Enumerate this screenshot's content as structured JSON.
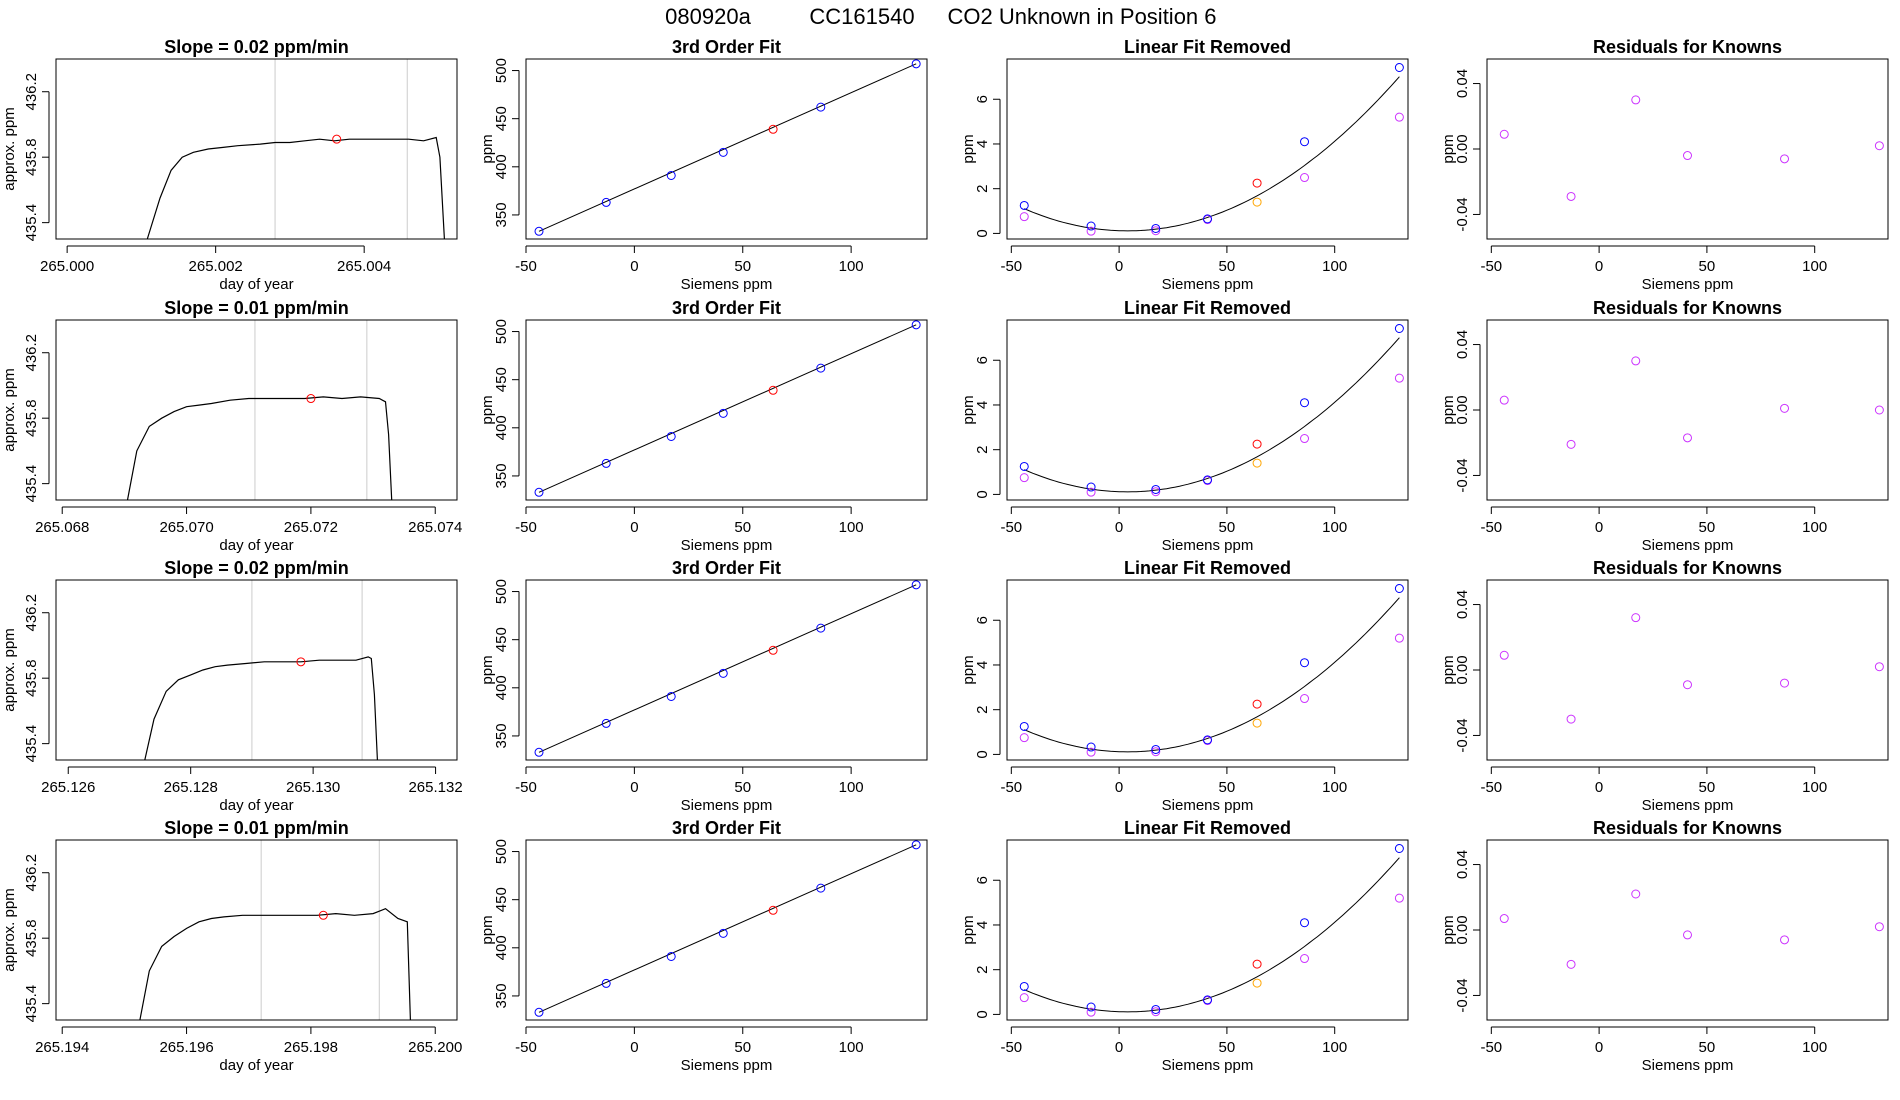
{
  "page": {
    "title_parts": [
      "080920a",
      "CC161540",
      "CO2 Unknown in Position  6"
    ]
  },
  "colors": {
    "axis": "#000000",
    "line": "#000000",
    "vline": "#cccccc",
    "blue": "#0000ff",
    "red": "#ff0000",
    "magenta": "#cc33ff",
    "orange": "#ffa500"
  },
  "chart_data": [
    {
      "type": "line",
      "title": "Slope =  0.02  ppm/min",
      "xlabel": "day of year",
      "ylabel": "approx. ppm",
      "xlim": [
        264.99985,
        265.00525
      ],
      "ylim": [
        435.3,
        436.4
      ],
      "xticks": [
        265.0,
        265.002,
        265.004
      ],
      "xtick_labels": [
        "265.000",
        "265.002",
        "265.004"
      ],
      "yticks": [
        435.4,
        435.8,
        436.2
      ],
      "ytick_labels": [
        "435.4",
        "435.8",
        "436.2"
      ],
      "vlines": [
        265.0028,
        265.00458
      ],
      "marker": {
        "x": 265.00363,
        "y": 435.91
      },
      "trace": {
        "x": [
          265.00108,
          265.00125,
          265.0014,
          265.00155,
          265.0017,
          265.0019,
          265.0021,
          265.0023,
          265.0026,
          265.0028,
          265.003,
          265.0032,
          265.0034,
          265.0036,
          265.0038,
          265.004,
          265.0042,
          265.0044,
          265.0046,
          265.0048,
          265.00497,
          265.00502,
          265.00508
        ],
        "y": [
          435.3,
          435.55,
          435.72,
          435.8,
          435.83,
          435.85,
          435.86,
          435.87,
          435.88,
          435.89,
          435.89,
          435.9,
          435.91,
          435.9,
          435.91,
          435.91,
          435.91,
          435.91,
          435.91,
          435.9,
          435.92,
          435.8,
          435.3
        ]
      }
    },
    {
      "type": "scatter",
      "title": "3rd Order Fit",
      "xlabel": "Siemens ppm",
      "ylabel": "ppm",
      "xlim": [
        -50,
        135
      ],
      "ylim": [
        325,
        512
      ],
      "xticks": [
        -50,
        0,
        50,
        100
      ],
      "yticks": [
        350,
        400,
        450,
        500
      ],
      "points_blue": [
        [
          -44,
          333
        ],
        [
          -13,
          363
        ],
        [
          17,
          391
        ],
        [
          41,
          415
        ],
        [
          86,
          462
        ],
        [
          130,
          507
        ]
      ],
      "points_red": [
        [
          64,
          439
        ]
      ],
      "curve": {
        "from": [
          -44,
          333
        ],
        "to": [
          130,
          507
        ]
      }
    },
    {
      "type": "scatter",
      "title": "Linear Fit Removed",
      "xlabel": "Siemens ppm",
      "ylabel": "ppm",
      "xlim": [
        -52,
        134
      ],
      "ylim": [
        -0.25,
        7.8
      ],
      "xticks": [
        -50,
        0,
        50,
        100
      ],
      "yticks": [
        0,
        2,
        4,
        6
      ],
      "points_blue": [
        [
          -44,
          1.25
        ],
        [
          -13,
          0.33
        ],
        [
          17,
          0.22
        ],
        [
          41,
          0.65
        ],
        [
          86,
          4.1
        ],
        [
          130,
          7.42
        ]
      ],
      "points_red": [
        [
          64,
          2.25
        ]
      ],
      "points_magenta": [
        [
          -44,
          0.75
        ],
        [
          -13,
          0.1
        ],
        [
          17,
          0.12
        ],
        [
          41,
          0.62
        ],
        [
          86,
          2.5
        ],
        [
          130,
          5.2
        ]
      ],
      "points_orange": [
        [
          64,
          1.4
        ]
      ],
      "poly": [
        0.12,
        -0.0033,
        0.000433
      ]
    },
    {
      "type": "scatter",
      "title": "Residuals for Knowns",
      "xlabel": "Siemens ppm",
      "ylabel": "ppm",
      "xlim": [
        -52,
        134
      ],
      "ylim": [
        -0.055,
        0.055
      ],
      "xticks": [
        -50,
        0,
        50,
        100
      ],
      "yticks": [
        -0.04,
        0.0,
        0.04
      ],
      "ytick_labels": [
        "-0.04",
        "0.00",
        "0.04"
      ],
      "points_magenta": [
        [
          -44,
          0.009
        ],
        [
          -13,
          -0.029
        ],
        [
          17,
          0.03
        ],
        [
          41,
          -0.004
        ],
        [
          86,
          -0.006
        ],
        [
          130,
          0.002
        ]
      ]
    },
    {
      "type": "line",
      "title": "Slope =  0.01  ppm/min",
      "xlabel": "day of year",
      "ylabel": "approx. ppm",
      "xlim": [
        265.0679,
        265.07435
      ],
      "ylim": [
        435.3,
        436.4
      ],
      "xticks": [
        265.068,
        265.07,
        265.072,
        265.074
      ],
      "xtick_labels": [
        "265.068",
        "265.070",
        "265.072",
        "265.074"
      ],
      "yticks": [
        435.4,
        435.8,
        436.2
      ],
      "ytick_labels": [
        "435.4",
        "435.8",
        "436.2"
      ],
      "vlines": [
        265.0711,
        265.0729
      ],
      "marker": {
        "x": 265.072,
        "y": 435.92
      },
      "trace": {
        "x": [
          265.06905,
          265.0692,
          265.0694,
          265.0696,
          265.0698,
          265.07,
          265.0702,
          265.0704,
          265.0707,
          265.071,
          265.0713,
          265.0716,
          265.0719,
          265.0722,
          265.0725,
          265.0728,
          265.0731,
          265.0732,
          265.07325,
          265.0733
        ],
        "y": [
          435.3,
          435.6,
          435.75,
          435.8,
          435.84,
          435.87,
          435.88,
          435.89,
          435.91,
          435.92,
          435.92,
          435.92,
          435.92,
          435.93,
          435.92,
          435.93,
          435.92,
          435.9,
          435.7,
          435.3
        ]
      }
    },
    {
      "type": "scatter",
      "title": "3rd Order Fit",
      "xlabel": "Siemens ppm",
      "ylabel": "ppm",
      "xlim": [
        -50,
        135
      ],
      "ylim": [
        325,
        512
      ],
      "xticks": [
        -50,
        0,
        50,
        100
      ],
      "yticks": [
        350,
        400,
        450,
        500
      ],
      "points_blue": [
        [
          -44,
          333
        ],
        [
          -13,
          363
        ],
        [
          17,
          391
        ],
        [
          41,
          415
        ],
        [
          86,
          462
        ],
        [
          130,
          507
        ]
      ],
      "points_red": [
        [
          64,
          439
        ]
      ],
      "curve": {
        "from": [
          -44,
          333
        ],
        "to": [
          130,
          507
        ]
      }
    },
    {
      "type": "scatter",
      "title": "Linear Fit Removed",
      "xlabel": "Siemens ppm",
      "ylabel": "ppm",
      "xlim": [
        -52,
        134
      ],
      "ylim": [
        -0.25,
        7.8
      ],
      "xticks": [
        -50,
        0,
        50,
        100
      ],
      "yticks": [
        0,
        2,
        4,
        6
      ],
      "points_blue": [
        [
          -44,
          1.25
        ],
        [
          -13,
          0.33
        ],
        [
          17,
          0.22
        ],
        [
          41,
          0.65
        ],
        [
          86,
          4.1
        ],
        [
          130,
          7.42
        ]
      ],
      "points_red": [
        [
          64,
          2.25
        ]
      ],
      "points_magenta": [
        [
          -44,
          0.75
        ],
        [
          -13,
          0.1
        ],
        [
          17,
          0.12
        ],
        [
          41,
          0.62
        ],
        [
          86,
          2.5
        ],
        [
          130,
          5.2
        ]
      ],
      "points_orange": [
        [
          64,
          1.4
        ]
      ],
      "poly": [
        0.12,
        -0.0033,
        0.000433
      ]
    },
    {
      "type": "scatter",
      "title": "Residuals for Knowns",
      "xlabel": "Siemens ppm",
      "ylabel": "ppm",
      "xlim": [
        -52,
        134
      ],
      "ylim": [
        -0.055,
        0.055
      ],
      "xticks": [
        -50,
        0,
        50,
        100
      ],
      "yticks": [
        -0.04,
        0.0,
        0.04
      ],
      "ytick_labels": [
        "-0.04",
        "0.00",
        "0.04"
      ],
      "points_magenta": [
        [
          -44,
          0.006
        ],
        [
          -13,
          -0.021
        ],
        [
          17,
          0.03
        ],
        [
          41,
          -0.017
        ],
        [
          86,
          0.001
        ],
        [
          130,
          0.0
        ]
      ]
    },
    {
      "type": "line",
      "title": "Slope =  0.02  ppm/min",
      "xlabel": "day of year",
      "ylabel": "approx. ppm",
      "xlim": [
        265.1258,
        265.13235
      ],
      "ylim": [
        435.3,
        436.4
      ],
      "xticks": [
        265.126,
        265.128,
        265.13,
        265.132
      ],
      "xtick_labels": [
        "265.126",
        "265.128",
        "265.130",
        "265.132"
      ],
      "yticks": [
        435.4,
        435.8,
        436.2
      ],
      "ytick_labels": [
        "435.4",
        "435.8",
        "436.2"
      ],
      "vlines": [
        265.129,
        265.1308
      ],
      "marker": {
        "x": 265.1298,
        "y": 435.9
      },
      "trace": {
        "x": [
          265.12725,
          265.1274,
          265.1276,
          265.1278,
          265.128,
          265.1282,
          265.1284,
          265.1286,
          265.1289,
          265.1292,
          265.1295,
          265.1298,
          265.1301,
          265.1304,
          265.1307,
          265.1309,
          265.13095,
          265.131,
          265.13105
        ],
        "y": [
          435.3,
          435.55,
          435.72,
          435.79,
          435.82,
          435.85,
          435.87,
          435.88,
          435.89,
          435.9,
          435.9,
          435.9,
          435.91,
          435.91,
          435.91,
          435.93,
          435.92,
          435.7,
          435.3
        ]
      }
    },
    {
      "type": "scatter",
      "title": "3rd Order Fit",
      "xlabel": "Siemens ppm",
      "ylabel": "ppm",
      "xlim": [
        -50,
        135
      ],
      "ylim": [
        325,
        512
      ],
      "xticks": [
        -50,
        0,
        50,
        100
      ],
      "yticks": [
        350,
        400,
        450,
        500
      ],
      "points_blue": [
        [
          -44,
          333
        ],
        [
          -13,
          363
        ],
        [
          17,
          391
        ],
        [
          41,
          415
        ],
        [
          86,
          462
        ],
        [
          130,
          507
        ]
      ],
      "points_red": [
        [
          64,
          439
        ]
      ],
      "curve": {
        "from": [
          -44,
          333
        ],
        "to": [
          130,
          507
        ]
      }
    },
    {
      "type": "scatter",
      "title": "Linear Fit Removed",
      "xlabel": "Siemens ppm",
      "ylabel": "ppm",
      "xlim": [
        -52,
        134
      ],
      "ylim": [
        -0.25,
        7.8
      ],
      "xticks": [
        -50,
        0,
        50,
        100
      ],
      "yticks": [
        0,
        2,
        4,
        6
      ],
      "points_blue": [
        [
          -44,
          1.25
        ],
        [
          -13,
          0.33
        ],
        [
          17,
          0.22
        ],
        [
          41,
          0.65
        ],
        [
          86,
          4.1
        ],
        [
          130,
          7.42
        ]
      ],
      "points_red": [
        [
          64,
          2.25
        ]
      ],
      "points_magenta": [
        [
          -44,
          0.75
        ],
        [
          -13,
          0.1
        ],
        [
          17,
          0.12
        ],
        [
          41,
          0.62
        ],
        [
          86,
          2.5
        ],
        [
          130,
          5.2
        ]
      ],
      "points_orange": [
        [
          64,
          1.4
        ]
      ],
      "poly": [
        0.12,
        -0.0033,
        0.000433
      ]
    },
    {
      "type": "scatter",
      "title": "Residuals for Knowns",
      "xlabel": "Siemens ppm",
      "ylabel": "ppm",
      "xlim": [
        -52,
        134
      ],
      "ylim": [
        -0.055,
        0.055
      ],
      "xticks": [
        -50,
        0,
        50,
        100
      ],
      "yticks": [
        -0.04,
        0.0,
        0.04
      ],
      "ytick_labels": [
        "-0.04",
        "0.00",
        "0.04"
      ],
      "points_magenta": [
        [
          -44,
          0.009
        ],
        [
          -13,
          -0.03
        ],
        [
          17,
          0.032
        ],
        [
          41,
          -0.009
        ],
        [
          86,
          -0.008
        ],
        [
          130,
          0.002
        ]
      ]
    },
    {
      "type": "line",
      "title": "Slope =  0.01  ppm/min",
      "xlabel": "day of year",
      "ylabel": "approx. ppm",
      "xlim": [
        265.1939,
        265.20035
      ],
      "ylim": [
        435.3,
        436.4
      ],
      "xticks": [
        265.194,
        265.196,
        265.198,
        265.2
      ],
      "xtick_labels": [
        "265.194",
        "265.196",
        "265.198",
        "265.200"
      ],
      "yticks": [
        435.4,
        435.8,
        436.2
      ],
      "ytick_labels": [
        "435.4",
        "435.8",
        "436.2"
      ],
      "vlines": [
        265.1972,
        265.1991
      ],
      "marker": {
        "x": 265.1982,
        "y": 435.94
      },
      "trace": {
        "x": [
          265.19525,
          265.1954,
          265.1956,
          265.1958,
          265.196,
          265.1962,
          265.1964,
          265.1966,
          265.1969,
          265.1972,
          265.1975,
          265.1978,
          265.1981,
          265.1984,
          265.1987,
          265.199,
          265.1992,
          265.1994,
          265.19955,
          265.1996
        ],
        "y": [
          435.3,
          435.6,
          435.75,
          435.81,
          435.86,
          435.9,
          435.92,
          435.93,
          435.94,
          435.94,
          435.94,
          435.94,
          435.94,
          435.95,
          435.94,
          435.95,
          435.98,
          435.92,
          435.9,
          435.3
        ]
      }
    },
    {
      "type": "scatter",
      "title": "3rd Order Fit",
      "xlabel": "Siemens ppm",
      "ylabel": "ppm",
      "xlim": [
        -50,
        135
      ],
      "ylim": [
        325,
        512
      ],
      "xticks": [
        -50,
        0,
        50,
        100
      ],
      "yticks": [
        350,
        400,
        450,
        500
      ],
      "points_blue": [
        [
          -44,
          333
        ],
        [
          -13,
          363
        ],
        [
          17,
          391
        ],
        [
          41,
          415
        ],
        [
          86,
          462
        ],
        [
          130,
          507
        ]
      ],
      "points_red": [
        [
          64,
          439
        ]
      ],
      "curve": {
        "from": [
          -44,
          333
        ],
        "to": [
          130,
          507
        ]
      }
    },
    {
      "type": "scatter",
      "title": "Linear Fit Removed",
      "xlabel": "Siemens ppm",
      "ylabel": "ppm",
      "xlim": [
        -52,
        134
      ],
      "ylim": [
        -0.25,
        7.8
      ],
      "xticks": [
        -50,
        0,
        50,
        100
      ],
      "yticks": [
        0,
        2,
        4,
        6
      ],
      "points_blue": [
        [
          -44,
          1.25
        ],
        [
          -13,
          0.33
        ],
        [
          17,
          0.22
        ],
        [
          41,
          0.65
        ],
        [
          86,
          4.1
        ],
        [
          130,
          7.42
        ]
      ],
      "points_red": [
        [
          64,
          2.25
        ]
      ],
      "points_magenta": [
        [
          -44,
          0.75
        ],
        [
          -13,
          0.1
        ],
        [
          17,
          0.12
        ],
        [
          41,
          0.62
        ],
        [
          86,
          2.5
        ],
        [
          130,
          5.2
        ]
      ],
      "points_orange": [
        [
          64,
          1.4
        ]
      ],
      "poly": [
        0.12,
        -0.0033,
        0.000433
      ]
    },
    {
      "type": "scatter",
      "title": "Residuals for Knowns",
      "xlabel": "Siemens ppm",
      "ylabel": "ppm",
      "xlim": [
        -52,
        134
      ],
      "ylim": [
        -0.055,
        0.055
      ],
      "xticks": [
        -50,
        0,
        50,
        100
      ],
      "yticks": [
        -0.04,
        0.0,
        0.04
      ],
      "ytick_labels": [
        "-0.04",
        "0.00",
        "0.04"
      ],
      "points_magenta": [
        [
          -44,
          0.007
        ],
        [
          -13,
          -0.021
        ],
        [
          17,
          0.022
        ],
        [
          41,
          -0.003
        ],
        [
          86,
          -0.006
        ],
        [
          130,
          0.002
        ]
      ]
    }
  ]
}
